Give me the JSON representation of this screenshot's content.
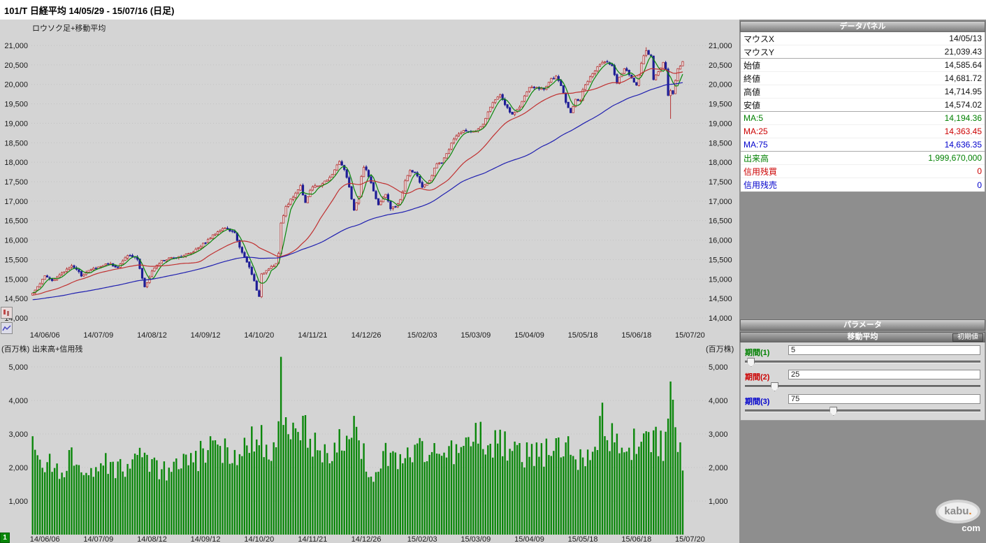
{
  "title": "101/T 日経平均  14/05/29 - 15/07/16 (日足)",
  "chart_pane": {
    "main_label": "ロウソク足+移動平均",
    "volume_label": "出来高+信用残",
    "volume_unit": "(百万株)",
    "page_button": "1"
  },
  "chart_data": {
    "type": "candlestick+volume",
    "instrument": "101/T 日経平均",
    "period": "14/05/29 - 15/07/16",
    "interval": "日足",
    "price_axis": {
      "min": 13750,
      "max": 21650,
      "ticks": [
        14000,
        14500,
        15000,
        15500,
        16000,
        16500,
        17000,
        17500,
        18000,
        18500,
        19000,
        19500,
        20000,
        20500,
        21000
      ]
    },
    "volume_axis": {
      "min": 0,
      "max": 5700,
      "unit": "百万株",
      "ticks": [
        1000,
        2000,
        3000,
        4000,
        5000
      ]
    },
    "x_ticks": [
      {
        "label": "14/06/06",
        "day": 5
      },
      {
        "label": "14/07/09",
        "day": 27
      },
      {
        "label": "14/08/12",
        "day": 49
      },
      {
        "label": "14/09/12",
        "day": 71
      },
      {
        "label": "14/10/20",
        "day": 93
      },
      {
        "label": "14/11/21",
        "day": 115
      },
      {
        "label": "14/12/26",
        "day": 137
      },
      {
        "label": "15/02/03",
        "day": 160
      },
      {
        "label": "15/03/09",
        "day": 182
      },
      {
        "label": "15/04/09",
        "day": 204
      },
      {
        "label": "15/05/18",
        "day": 226
      },
      {
        "label": "15/06/18",
        "day": 248
      },
      {
        "label": "15/07/20",
        "day": 270
      }
    ],
    "days_total": 268,
    "close_anchors": [
      [
        0,
        14650
      ],
      [
        3,
        14860
      ],
      [
        5,
        15080
      ],
      [
        8,
        14970
      ],
      [
        12,
        15140
      ],
      [
        16,
        15360
      ],
      [
        20,
        15100
      ],
      [
        24,
        15250
      ],
      [
        27,
        15300
      ],
      [
        31,
        15410
      ],
      [
        35,
        15300
      ],
      [
        39,
        15620
      ],
      [
        43,
        15520
      ],
      [
        46,
        14780
      ],
      [
        49,
        15210
      ],
      [
        53,
        15460
      ],
      [
        57,
        15540
      ],
      [
        61,
        15590
      ],
      [
        65,
        15670
      ],
      [
        71,
        15950
      ],
      [
        76,
        16230
      ],
      [
        79,
        16320
      ],
      [
        83,
        16170
      ],
      [
        86,
        15670
      ],
      [
        89,
        15300
      ],
      [
        91,
        14940
      ],
      [
        93,
        14530
      ],
      [
        94,
        15110
      ],
      [
        97,
        15290
      ],
      [
        100,
        15390
      ],
      [
        101,
        15660
      ],
      [
        102,
        16410
      ],
      [
        104,
        16860
      ],
      [
        107,
        17120
      ],
      [
        110,
        17390
      ],
      [
        112,
        16975
      ],
      [
        114,
        17290
      ],
      [
        115,
        17360
      ],
      [
        118,
        17410
      ],
      [
        122,
        17590
      ],
      [
        125,
        17920
      ],
      [
        126,
        18030
      ],
      [
        128,
        17810
      ],
      [
        130,
        17370
      ],
      [
        132,
        16755
      ],
      [
        134,
        17110
      ],
      [
        135,
        17620
      ],
      [
        136,
        17850
      ],
      [
        137,
        17820
      ],
      [
        139,
        17450
      ],
      [
        142,
        16880
      ],
      [
        145,
        17200
      ],
      [
        147,
        16795
      ],
      [
        149,
        16865
      ],
      [
        151,
        17015
      ],
      [
        153,
        17510
      ],
      [
        155,
        17795
      ],
      [
        158,
        17670
      ],
      [
        160,
        17335
      ],
      [
        163,
        17505
      ],
      [
        166,
        17980
      ],
      [
        168,
        18005
      ],
      [
        171,
        18330
      ],
      [
        173,
        18600
      ],
      [
        177,
        18825
      ],
      [
        182,
        18790
      ],
      [
        185,
        18990
      ],
      [
        188,
        19435
      ],
      [
        192,
        19755
      ],
      [
        194,
        19470
      ],
      [
        197,
        19205
      ],
      [
        200,
        19435
      ],
      [
        204,
        19935
      ],
      [
        207,
        19905
      ],
      [
        210,
        19885
      ],
      [
        213,
        20135
      ],
      [
        215,
        20185
      ],
      [
        217,
        19985
      ],
      [
        219,
        19520
      ],
      [
        221,
        19290
      ],
      [
        223,
        19620
      ],
      [
        225,
        19570
      ],
      [
        226,
        19890
      ],
      [
        229,
        20200
      ],
      [
        232,
        20435
      ],
      [
        234,
        20550
      ],
      [
        236,
        20570
      ],
      [
        238,
        20475
      ],
      [
        240,
        20050
      ],
      [
        243,
        20405
      ],
      [
        245,
        20260
      ],
      [
        248,
        19990
      ],
      [
        250,
        20545
      ],
      [
        252,
        20870
      ],
      [
        254,
        20705
      ],
      [
        255,
        20110
      ],
      [
        256,
        20235
      ],
      [
        257,
        20330
      ],
      [
        259,
        20540
      ],
      [
        260,
        20375
      ],
      [
        261,
        19740
      ],
      [
        262,
        19855
      ],
      [
        263,
        19780
      ],
      [
        264,
        20090
      ],
      [
        265,
        20385
      ],
      [
        266,
        20465
      ],
      [
        267,
        20600
      ]
    ],
    "volume_anchors": [
      [
        0,
        2700
      ],
      [
        4,
        2100
      ],
      [
        8,
        2150
      ],
      [
        12,
        1950
      ],
      [
        16,
        2250
      ],
      [
        20,
        2050
      ],
      [
        24,
        1850
      ],
      [
        27,
        2000
      ],
      [
        31,
        2200
      ],
      [
        35,
        1900
      ],
      [
        40,
        2100
      ],
      [
        44,
        2300
      ],
      [
        46,
        2600
      ],
      [
        49,
        2100
      ],
      [
        53,
        1850
      ],
      [
        57,
        1950
      ],
      [
        62,
        2200
      ],
      [
        66,
        2050
      ],
      [
        71,
        2600
      ],
      [
        76,
        2400
      ],
      [
        79,
        2500
      ],
      [
        83,
        2350
      ],
      [
        86,
        2800
      ],
      [
        89,
        2750
      ],
      [
        91,
        3000
      ],
      [
        93,
        3200
      ],
      [
        95,
        2700
      ],
      [
        98,
        2450
      ],
      [
        100,
        2500
      ],
      [
        102,
        5250
      ],
      [
        103,
        3900
      ],
      [
        104,
        3300
      ],
      [
        106,
        2950
      ],
      [
        108,
        2750
      ],
      [
        110,
        3000
      ],
      [
        112,
        3100
      ],
      [
        114,
        2750
      ],
      [
        116,
        2600
      ],
      [
        119,
        2500
      ],
      [
        122,
        2550
      ],
      [
        125,
        2750
      ],
      [
        127,
        2700
      ],
      [
        130,
        2600
      ],
      [
        132,
        3000
      ],
      [
        134,
        2800
      ],
      [
        136,
        2400
      ],
      [
        138,
        2000
      ],
      [
        139,
        1650
      ],
      [
        141,
        1800
      ],
      [
        143,
        2300
      ],
      [
        146,
        2400
      ],
      [
        149,
        2300
      ],
      [
        152,
        2250
      ],
      [
        155,
        2500
      ],
      [
        158,
        2400
      ],
      [
        160,
        2600
      ],
      [
        163,
        2450
      ],
      [
        166,
        2550
      ],
      [
        169,
        2350
      ],
      [
        172,
        2450
      ],
      [
        175,
        2600
      ],
      [
        178,
        2500
      ],
      [
        181,
        2800
      ],
      [
        183,
        3100
      ],
      [
        186,
        2700
      ],
      [
        189,
        2600
      ],
      [
        192,
        2800
      ],
      [
        195,
        2600
      ],
      [
        198,
        2400
      ],
      [
        201,
        2350
      ],
      [
        204,
        2500
      ],
      [
        207,
        2350
      ],
      [
        210,
        2450
      ],
      [
        213,
        2600
      ],
      [
        216,
        2500
      ],
      [
        219,
        2800
      ],
      [
        221,
        2650
      ],
      [
        224,
        2350
      ],
      [
        226,
        2450
      ],
      [
        229,
        2550
      ],
      [
        232,
        2750
      ],
      [
        234,
        3500
      ],
      [
        236,
        3050
      ],
      [
        239,
        2750
      ],
      [
        242,
        2550
      ],
      [
        245,
        2450
      ],
      [
        248,
        2900
      ],
      [
        251,
        2700
      ],
      [
        253,
        2650
      ],
      [
        255,
        3100
      ],
      [
        257,
        2750
      ],
      [
        259,
        2550
      ],
      [
        261,
        3400
      ],
      [
        262,
        3900
      ],
      [
        264,
        3000
      ],
      [
        266,
        2600
      ],
      [
        267,
        2300
      ]
    ],
    "wick_low_overrides": {
      "262": 19116
    },
    "wick_high_overrides": {
      "252": 20952
    },
    "ma_series": [
      {
        "name": "MA:5",
        "window": 5,
        "color": "#0a870a"
      },
      {
        "name": "MA:25",
        "window": 25,
        "color": "#c03030"
      },
      {
        "name": "MA:75",
        "window": 75,
        "color": "#2020b0"
      }
    ],
    "colors": {
      "up": "#b43232",
      "up_fill": "#f2eded",
      "down": "#1e1e96",
      "volume": "#0a870a",
      "grid": "#c2c2c2"
    }
  },
  "datapanel": {
    "title": "データパネル",
    "rows": [
      {
        "label": "マウスX",
        "value": "14/05/13"
      },
      {
        "label": "マウスY",
        "value": "21,039.43"
      },
      {
        "label": "始値",
        "value": "14,585.64"
      },
      {
        "label": "終値",
        "value": "14,681.72"
      },
      {
        "label": "高値",
        "value": "14,714.95"
      },
      {
        "label": "安値",
        "value": "14,574.02"
      },
      {
        "label": "MA:5",
        "value": "14,194.36",
        "color": "#008000"
      },
      {
        "label": "MA:25",
        "value": "14,363.45",
        "color": "#cc0000"
      },
      {
        "label": "MA:75",
        "value": "14,636.35",
        "color": "#0000cc"
      },
      {
        "label": "出来高",
        "value": "1,999,670,000",
        "color": "#008000"
      },
      {
        "label": "信用残買",
        "value": "0",
        "color": "#cc0000"
      },
      {
        "label": "信用残売",
        "value": "0",
        "color": "#0000cc"
      }
    ]
  },
  "parameters": {
    "title": "パラメータ",
    "group_title": "移動平均",
    "reset_label": "初期値",
    "sliders": [
      {
        "label": "期間(1)",
        "value": 5,
        "max": 200,
        "color": "#008000"
      },
      {
        "label": "期間(2)",
        "value": 25,
        "max": 200,
        "color": "#cc0000"
      },
      {
        "label": "期間(3)",
        "value": 75,
        "max": 200,
        "color": "#0000cc"
      }
    ]
  },
  "logo": {
    "kabu": "kabu",
    "dot": ".",
    "com": "com"
  }
}
